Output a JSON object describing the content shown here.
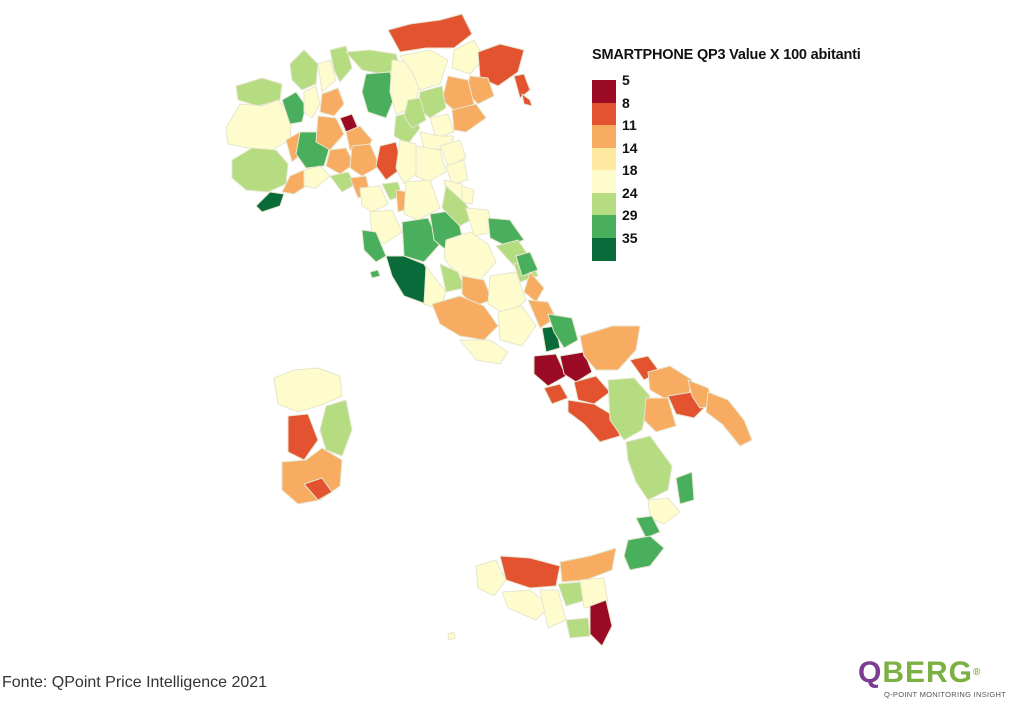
{
  "legend": {
    "title": "SMARTPHONE QP3 Value X 100 abitanti",
    "items": [
      {
        "label": "5",
        "color": "#9b0a25"
      },
      {
        "label": "8",
        "color": "#e4532f"
      },
      {
        "label": "11",
        "color": "#f8ac62"
      },
      {
        "label": "14",
        "color": "#fee9a0"
      },
      {
        "label": "18",
        "color": "#fefccc"
      },
      {
        "label": "24",
        "color": "#b5dc80"
      },
      {
        "label": "29",
        "color": "#4aaf5c"
      },
      {
        "label": "35",
        "color": "#0a6b3a"
      }
    ]
  },
  "map": {
    "region": "Italia",
    "fill_colors": {
      "very_low": "#9b0a25",
      "low": "#e4532f",
      "mid_low": "#f8ac62",
      "mid": "#fefccc",
      "mid_high": "#b5dc80",
      "high": "#4aaf5c",
      "very_high": "#0a6b3a"
    }
  },
  "source": "Fonte: QPoint Price Intelligence 2021",
  "logo": {
    "q": "Q",
    "rest": "BERG",
    "registered": "®",
    "subtitle": "Q-POINT MONITORING INSIGHT"
  }
}
